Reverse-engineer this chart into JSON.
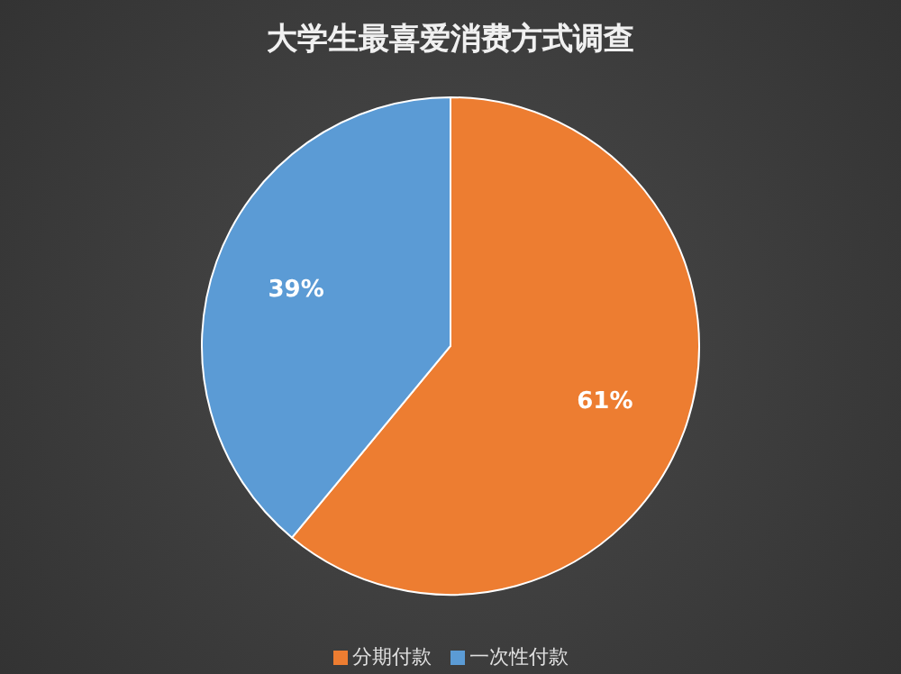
{
  "chart_data": {
    "type": "pie",
    "title": "大学生最喜爱消费方式调查",
    "categories": [
      "分期付款",
      "一次性付款"
    ],
    "values": [
      61,
      39
    ],
    "colors": [
      "#ed7d31",
      "#5b9bd5"
    ],
    "value_labels": [
      "61%",
      "39%"
    ],
    "legend": "bottom"
  }
}
